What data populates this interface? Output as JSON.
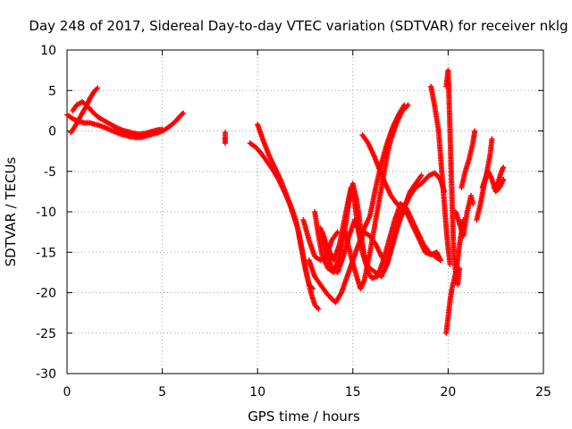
{
  "chart_data": {
    "type": "scatter",
    "title": "Day 248 of 2017, Sidereal Day-to-day VTEC variation (SDTVAR) for receiver nklg",
    "xlabel": "GPS time / hours",
    "ylabel": "SDTVAR / TECUs",
    "xlim": [
      0,
      25
    ],
    "ylim": [
      -30,
      10
    ],
    "xticks": [
      0,
      5,
      10,
      15,
      20,
      25
    ],
    "xtick_labels": [
      "0",
      "5",
      "10",
      "15",
      "20",
      "25"
    ],
    "yticks": [
      -30,
      -25,
      -20,
      -15,
      -10,
      -5,
      0,
      5,
      10
    ],
    "ytick_labels": [
      "-30",
      "-25",
      "-20",
      "-15",
      "-10",
      "-5",
      "0",
      "5",
      "10"
    ],
    "grid": true,
    "marker": "+",
    "series": [
      {
        "color": "#ff0000",
        "tracks": [
          [
            [
              0.0,
              2.0
            ],
            [
              0.3,
              1.5
            ],
            [
              0.6,
              1.2
            ],
            [
              0.9,
              1.0
            ],
            [
              1.2,
              1.0
            ],
            [
              1.5,
              0.8
            ],
            [
              1.8,
              0.6
            ],
            [
              2.1,
              0.3
            ],
            [
              2.4,
              0.0
            ],
            [
              2.7,
              -0.3
            ],
            [
              3.0,
              -0.5
            ],
            [
              3.3,
              -0.7
            ],
            [
              3.6,
              -0.8
            ],
            [
              3.9,
              -0.8
            ],
            [
              4.2,
              -0.6
            ],
            [
              4.5,
              -0.4
            ],
            [
              4.8,
              -0.2
            ],
            [
              5.1,
              0.1
            ],
            [
              5.4,
              0.6
            ],
            [
              5.7,
              1.2
            ],
            [
              6.0,
              2.0
            ],
            [
              6.1,
              2.2
            ]
          ],
          [
            [
              0.2,
              -0.2
            ],
            [
              0.4,
              0.5
            ],
            [
              0.6,
              1.3
            ],
            [
              0.8,
              2.2
            ],
            [
              1.0,
              3.0
            ],
            [
              1.2,
              4.0
            ],
            [
              1.4,
              4.8
            ],
            [
              1.6,
              5.3
            ]
          ],
          [
            [
              0.3,
              2.5
            ],
            [
              0.5,
              3.2
            ],
            [
              0.8,
              3.6
            ],
            [
              1.1,
              3.0
            ],
            [
              1.4,
              2.2
            ],
            [
              1.7,
              1.6
            ],
            [
              2.0,
              1.2
            ],
            [
              2.3,
              0.8
            ],
            [
              2.6,
              0.4
            ],
            [
              2.9,
              0.1
            ],
            [
              3.2,
              -0.1
            ],
            [
              3.5,
              -0.3
            ],
            [
              3.8,
              -0.4
            ],
            [
              4.1,
              -0.3
            ],
            [
              4.4,
              -0.1
            ],
            [
              4.7,
              0.1
            ],
            [
              5.0,
              0.2
            ]
          ],
          [
            [
              8.3,
              -0.2
            ],
            [
              8.3,
              -0.8
            ],
            [
              8.3,
              -1.5
            ]
          ],
          [
            [
              9.6,
              -1.5
            ],
            [
              9.9,
              -2.0
            ],
            [
              10.2,
              -2.8
            ],
            [
              10.5,
              -3.8
            ],
            [
              10.8,
              -4.8
            ],
            [
              11.1,
              -6.0
            ],
            [
              11.4,
              -7.5
            ],
            [
              11.7,
              -9.0
            ],
            [
              12.0,
              -11.0
            ],
            [
              12.2,
              -13.0
            ],
            [
              12.4,
              -15.5
            ],
            [
              12.6,
              -18.0
            ],
            [
              12.8,
              -20.0
            ],
            [
              13.0,
              -21.5
            ],
            [
              13.2,
              -22.0
            ]
          ],
          [
            [
              10.0,
              0.8
            ],
            [
              10.3,
              -1.2
            ],
            [
              10.6,
              -3.0
            ],
            [
              10.9,
              -4.5
            ],
            [
              11.2,
              -6.0
            ],
            [
              11.5,
              -7.8
            ],
            [
              11.8,
              -9.8
            ],
            [
              12.1,
              -12.0
            ],
            [
              12.3,
              -14.5
            ],
            [
              12.5,
              -17.0
            ],
            [
              12.7,
              -19.0
            ],
            [
              12.9,
              -19.5
            ]
          ],
          [
            [
              12.7,
              -16.0
            ],
            [
              13.0,
              -18.0
            ],
            [
              13.3,
              -19.0
            ],
            [
              13.6,
              -20.0
            ],
            [
              13.9,
              -20.8
            ],
            [
              14.1,
              -21.2
            ],
            [
              14.4,
              -20.0
            ],
            [
              14.7,
              -18.0
            ],
            [
              15.0,
              -16.0
            ],
            [
              15.3,
              -14.0
            ],
            [
              15.6,
              -12.5
            ],
            [
              15.9,
              -13.0
            ],
            [
              16.2,
              -14.0
            ],
            [
              16.5,
              -15.5
            ],
            [
              16.8,
              -16.5
            ],
            [
              17.1,
              -13.5
            ],
            [
              17.4,
              -11.0
            ],
            [
              17.7,
              -9.5
            ],
            [
              18.0,
              -8.0
            ],
            [
              18.3,
              -7.0
            ],
            [
              18.6,
              -6.5
            ],
            [
              19.0,
              -5.5
            ],
            [
              19.3,
              -5.2
            ],
            [
              19.6,
              -6.0
            ],
            [
              19.8,
              -7.5
            ]
          ],
          [
            [
              13.0,
              -10.0
            ],
            [
              13.2,
              -13.0
            ],
            [
              13.4,
              -15.5
            ],
            [
              13.7,
              -17.0
            ],
            [
              14.0,
              -17.5
            ],
            [
              14.3,
              -15.5
            ],
            [
              14.6,
              -12.0
            ],
            [
              14.8,
              -8.5
            ],
            [
              15.0,
              -6.5
            ],
            [
              15.2,
              -8.5
            ],
            [
              15.4,
              -12.0
            ],
            [
              15.6,
              -15.5
            ],
            [
              15.8,
              -17.5
            ],
            [
              16.0,
              -18.2
            ],
            [
              16.3,
              -18.0
            ],
            [
              16.6,
              -16.0
            ],
            [
              16.9,
              -13.5
            ],
            [
              17.2,
              -11.0
            ],
            [
              17.5,
              -9.0
            ],
            [
              17.8,
              -9.5
            ],
            [
              18.1,
              -11.0
            ],
            [
              18.4,
              -12.5
            ],
            [
              18.7,
              -14.0
            ],
            [
              19.0,
              -15.0
            ],
            [
              19.3,
              -15.5
            ],
            [
              19.6,
              -16.0
            ]
          ],
          [
            [
              13.4,
              -12.5
            ],
            [
              13.6,
              -14.0
            ],
            [
              13.8,
              -15.0
            ],
            [
              14.0,
              -16.0
            ],
            [
              14.3,
              -14.0
            ],
            [
              14.6,
              -10.5
            ],
            [
              14.9,
              -7.0
            ],
            [
              15.1,
              -9.0
            ],
            [
              15.3,
              -12.5
            ],
            [
              15.5,
              -15.0
            ],
            [
              15.7,
              -16.5
            ],
            [
              15.9,
              -17.0
            ],
            [
              16.2,
              -17.5
            ],
            [
              16.5,
              -18.0
            ],
            [
              16.8,
              -16.5
            ],
            [
              17.1,
              -14.0
            ],
            [
              17.4,
              -11.5
            ],
            [
              17.7,
              -9.5
            ],
            [
              18.0,
              -7.5
            ],
            [
              18.3,
              -6.5
            ],
            [
              18.6,
              -5.5
            ]
          ],
          [
            [
              15.5,
              -0.5
            ],
            [
              15.8,
              -1.5
            ],
            [
              16.1,
              -3.0
            ],
            [
              16.4,
              -4.8
            ],
            [
              16.7,
              -6.5
            ],
            [
              17.0,
              -8.0
            ],
            [
              17.3,
              -9.0
            ],
            [
              17.6,
              -9.3
            ],
            [
              17.9,
              -10.5
            ],
            [
              18.2,
              -12.0
            ],
            [
              18.5,
              -13.5
            ],
            [
              18.8,
              -15.0
            ],
            [
              19.1,
              -15.3
            ],
            [
              19.4,
              -15.0
            ],
            [
              19.6,
              -16.0
            ]
          ],
          [
            [
              14.6,
              -12.5
            ],
            [
              14.9,
              -15.5
            ],
            [
              15.2,
              -18.0
            ],
            [
              15.4,
              -19.5
            ],
            [
              15.6,
              -18.5
            ],
            [
              15.9,
              -15.0
            ],
            [
              16.2,
              -11.0
            ],
            [
              16.5,
              -7.0
            ],
            [
              16.8,
              -3.0
            ],
            [
              17.0,
              -1.0
            ],
            [
              17.3,
              1.0
            ],
            [
              17.6,
              2.5
            ],
            [
              17.9,
              3.2
            ]
          ],
          [
            [
              13.3,
              -12.0
            ],
            [
              13.6,
              -15.0
            ],
            [
              13.9,
              -17.0
            ],
            [
              14.2,
              -17.5
            ],
            [
              14.5,
              -15.5
            ],
            [
              14.8,
              -13.0
            ],
            [
              15.1,
              -11.0
            ],
            [
              15.4,
              -13.0
            ],
            [
              15.6,
              -12.0
            ],
            [
              15.9,
              -10.5
            ],
            [
              16.2,
              -7.0
            ],
            [
              16.5,
              -4.0
            ],
            [
              16.8,
              -1.5
            ],
            [
              17.1,
              0.5
            ],
            [
              17.4,
              2.0
            ],
            [
              17.7,
              3.2
            ]
          ],
          [
            [
              12.4,
              -11.0
            ],
            [
              12.7,
              -13.5
            ],
            [
              13.0,
              -15.5
            ],
            [
              13.3,
              -16.0
            ],
            [
              13.6,
              -15.5
            ],
            [
              13.9,
              -13.5
            ],
            [
              14.2,
              -12.5
            ]
          ],
          [
            [
              19.1,
              5.5
            ],
            [
              19.3,
              3.0
            ],
            [
              19.5,
              0.0
            ],
            [
              19.6,
              -3.0
            ],
            [
              19.7,
              -6.0
            ],
            [
              19.8,
              -9.0
            ],
            [
              19.9,
              -12.0
            ],
            [
              20.0,
              -14.5
            ],
            [
              20.1,
              -16.5
            ]
          ],
          [
            [
              19.9,
              -25.0
            ],
            [
              20.0,
              -23.0
            ],
            [
              20.1,
              -21.0
            ],
            [
              20.2,
              -19.5
            ],
            [
              20.3,
              -18.5
            ],
            [
              20.4,
              -17.5
            ],
            [
              20.5,
              -16.0
            ],
            [
              20.6,
              -14.0
            ],
            [
              20.7,
              -12.5
            ],
            [
              20.8,
              -11.0
            ]
          ],
          [
            [
              19.9,
              5.5
            ],
            [
              20.0,
              7.5
            ],
            [
              20.05,
              4.0
            ],
            [
              20.1,
              0.0
            ],
            [
              20.15,
              -4.0
            ],
            [
              20.2,
              -8.0
            ],
            [
              20.25,
              -12.0
            ],
            [
              20.3,
              -15.5
            ],
            [
              20.4,
              -17.5
            ],
            [
              20.5,
              -19.0
            ],
            [
              20.6,
              -17.0
            ]
          ],
          [
            [
              20.4,
              -10.0
            ],
            [
              20.6,
              -11.5
            ],
            [
              20.8,
              -13.0
            ],
            [
              21.0,
              -10.0
            ],
            [
              21.2,
              -8.0
            ],
            [
              21.3,
              -9.0
            ]
          ],
          [
            [
              20.7,
              -7.0
            ],
            [
              20.9,
              -5.0
            ],
            [
              21.1,
              -3.5
            ],
            [
              21.3,
              -1.5
            ],
            [
              21.4,
              0.0
            ]
          ],
          [
            [
              21.8,
              -7.0
            ],
            [
              22.0,
              -5.5
            ],
            [
              22.2,
              -3.0
            ],
            [
              22.3,
              -1.0
            ]
          ],
          [
            [
              21.5,
              -11.0
            ],
            [
              21.7,
              -9.0
            ],
            [
              21.9,
              -6.5
            ],
            [
              22.1,
              -5.0
            ],
            [
              22.3,
              -6.0
            ],
            [
              22.5,
              -7.5
            ],
            [
              22.7,
              -7.0
            ],
            [
              22.9,
              -6.0
            ]
          ],
          [
            [
              22.4,
              -7.0
            ],
            [
              22.6,
              -6.5
            ],
            [
              22.8,
              -5.0
            ],
            [
              22.9,
              -4.5
            ]
          ]
        ]
      }
    ]
  }
}
